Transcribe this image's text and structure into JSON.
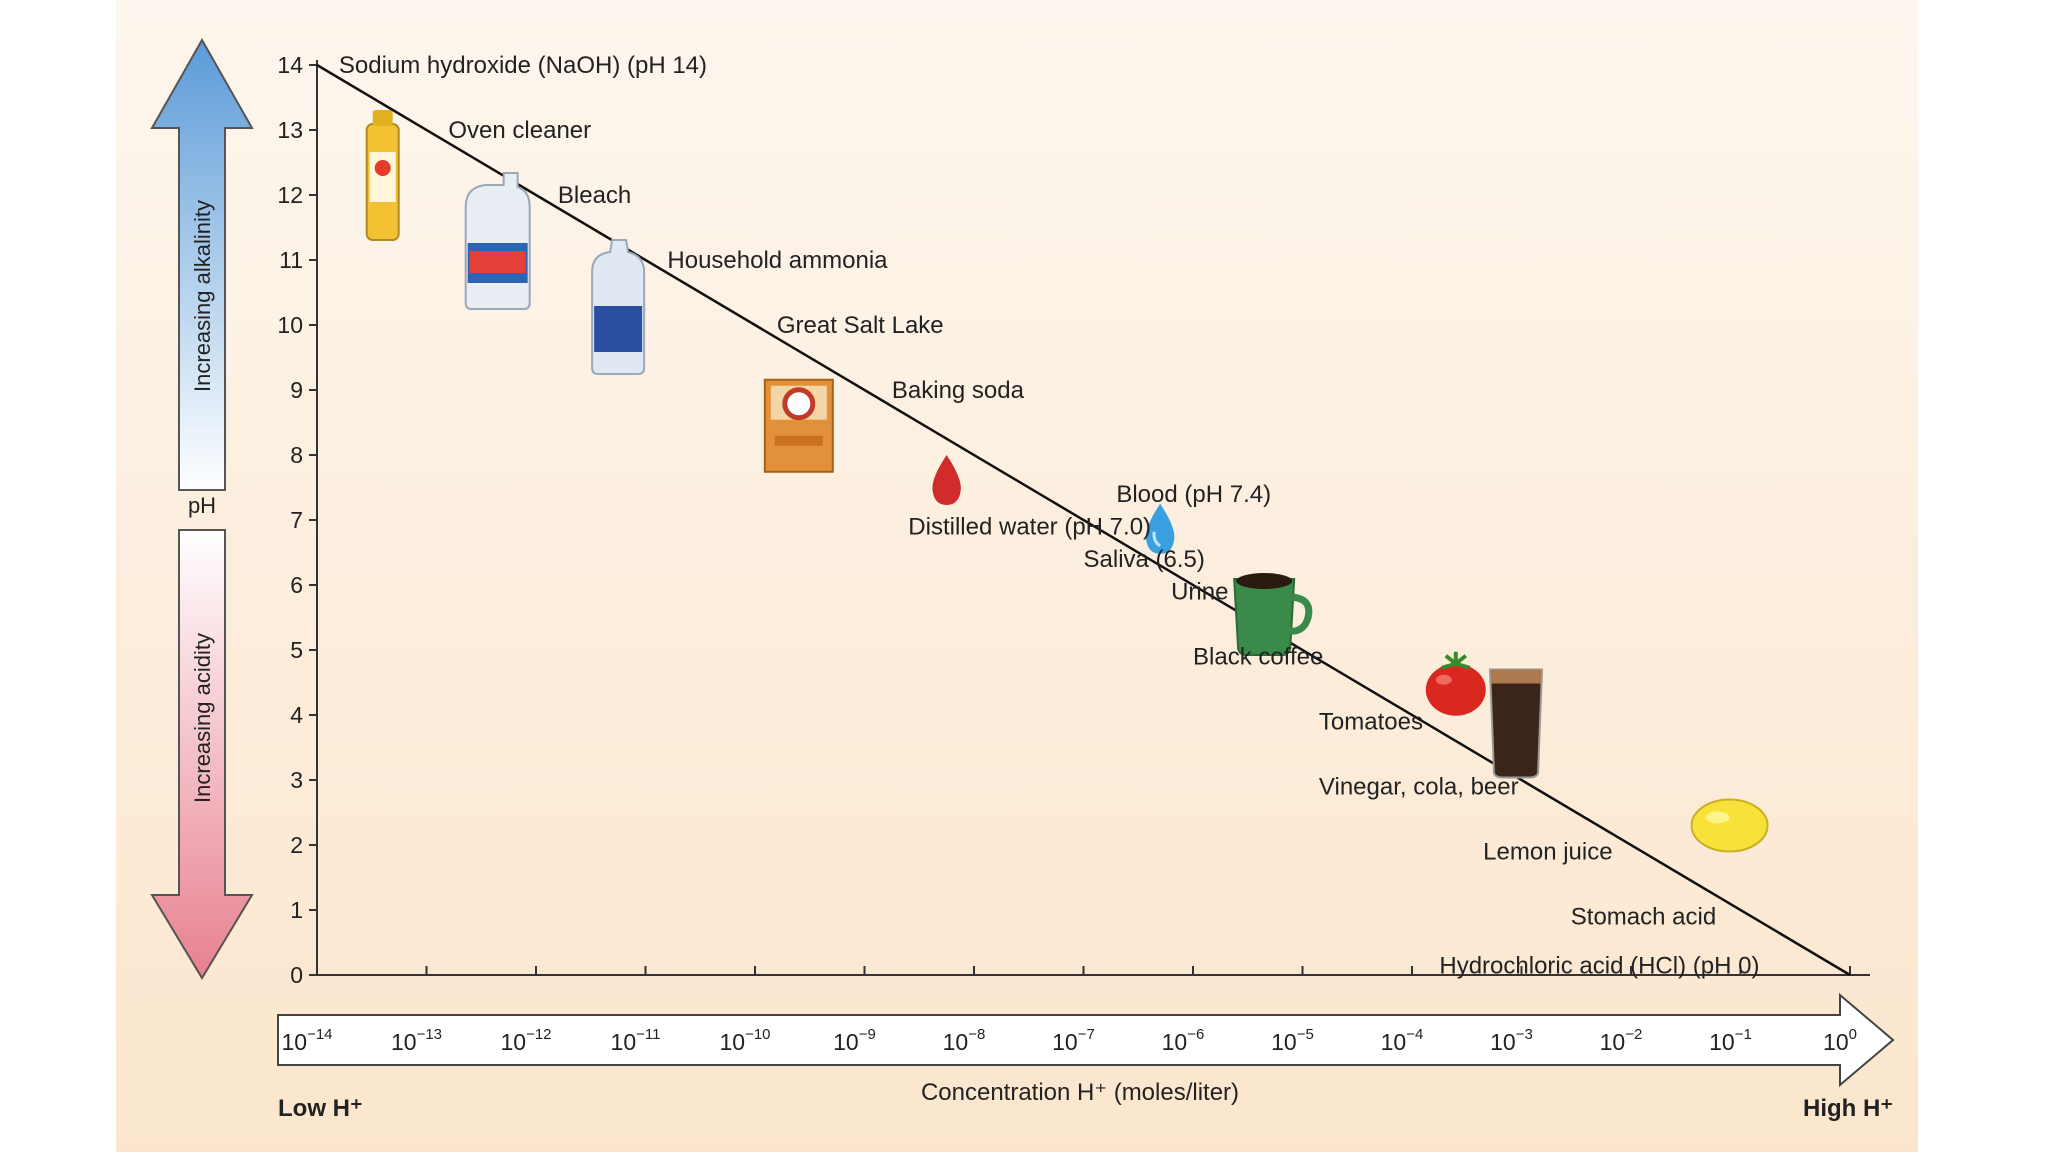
{
  "chart_data": {
    "type": "line",
    "title": "",
    "ylabel": "pH",
    "xlabel": "Concentration H⁺ (moles/liter)",
    "x_axis": {
      "low_label": "Low H⁺",
      "high_label": "High H⁺",
      "exponents": [
        -14,
        -13,
        -12,
        -11,
        -10,
        -9,
        -8,
        -7,
        -6,
        -5,
        -4,
        -3,
        -2,
        -1,
        0
      ],
      "tick_base": "10"
    },
    "ylim": [
      0,
      14
    ],
    "yticks": [
      0,
      1,
      2,
      3,
      4,
      5,
      6,
      7,
      8,
      9,
      10,
      11,
      12,
      13,
      14
    ],
    "arrows": {
      "up": "Increasing alkalinity",
      "down": "Increasing acidity",
      "middle": "pH"
    },
    "line": {
      "x": [
        -14,
        0
      ],
      "y": [
        14,
        0
      ]
    },
    "annotations": [
      {
        "text": "Sodium hydroxide (NaOH) (pH 14)",
        "x": -13.8,
        "y": 14.0
      },
      {
        "text": "Oven cleaner",
        "x": -12.8,
        "y": 13.0
      },
      {
        "text": "Bleach",
        "x": -11.8,
        "y": 12.0
      },
      {
        "text": "Household ammonia",
        "x": -10.8,
        "y": 11.0
      },
      {
        "text": "Great Salt Lake",
        "x": -9.8,
        "y": 10.0
      },
      {
        "text": "Baking soda",
        "x": -8.75,
        "y": 9.0
      },
      {
        "text": "Blood (pH 7.4)",
        "x": -6.7,
        "y": 7.4
      },
      {
        "text": "Distilled water (pH 7.0)",
        "x": -8.6,
        "y": 6.9
      },
      {
        "text": "Saliva (6.5)",
        "x": -7.0,
        "y": 6.4
      },
      {
        "text": "Urine",
        "x": -6.2,
        "y": 5.9
      },
      {
        "text": "Black coffee",
        "x": -6.0,
        "y": 4.9
      },
      {
        "text": "Tomatoes",
        "x": -4.85,
        "y": 3.9
      },
      {
        "text": "Vinegar, cola, beer",
        "x": -4.85,
        "y": 2.9
      },
      {
        "text": "Lemon juice",
        "x": -3.35,
        "y": 1.9
      },
      {
        "text": "Stomach acid",
        "x": -2.55,
        "y": 0.9
      },
      {
        "text": "Hydrochloric acid (HCl) (pH 0)",
        "x": -3.75,
        "y": 0.15
      }
    ],
    "icons": [
      {
        "name": "oven-cleaner-can-icon",
        "x": -13.4,
        "y": 12.2,
        "color": "#f2c233"
      },
      {
        "name": "bleach-jug-icon",
        "x": -12.35,
        "y": 11.2,
        "color": "#e9eef5"
      },
      {
        "name": "ammonia-bottle-icon",
        "x": -11.25,
        "y": 10.2,
        "color": "#dfe8f3"
      },
      {
        "name": "baking-soda-box-icon",
        "x": -9.6,
        "y": 8.45,
        "color": "#e3903a"
      },
      {
        "name": "blood-drop-icon",
        "x": -8.25,
        "y": 7.6,
        "color": "#d12b2b"
      },
      {
        "name": "water-drop-icon",
        "x": -6.3,
        "y": 6.85,
        "color": "#3ba0e0"
      },
      {
        "name": "coffee-mug-icon",
        "x": -5.35,
        "y": 5.6,
        "color": "#3a8a4a"
      },
      {
        "name": "tomato-icon",
        "x": -3.6,
        "y": 4.45,
        "color": "#d8281f"
      },
      {
        "name": "cola-glass-icon",
        "x": -3.05,
        "y": 3.9,
        "color": "#3a2518"
      },
      {
        "name": "lemon-icon",
        "x": -1.1,
        "y": 2.3,
        "color": "#f7e23a"
      }
    ],
    "colors": {
      "alkaline_arrow": "#5b9bd8",
      "acid_arrow": "#e88090"
    }
  }
}
